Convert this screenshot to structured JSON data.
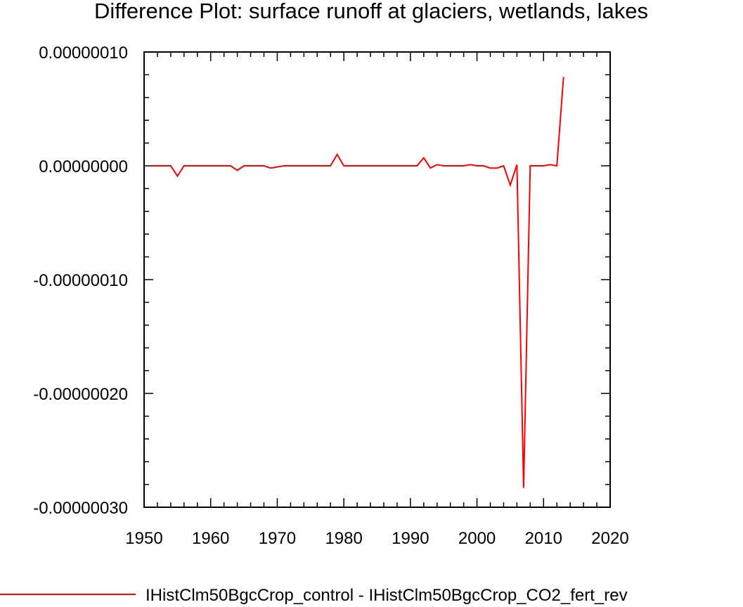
{
  "chart_data": {
    "type": "line",
    "title": "Difference Plot: surface runoff at glaciers, wetlands, lakes",
    "xlabel": "",
    "ylabel": "",
    "xlim": [
      1950,
      2020
    ],
    "ylim": [
      -3e-07,
      1e-07
    ],
    "x_ticks": [
      1950,
      1960,
      1970,
      1980,
      1990,
      2000,
      2010,
      2020
    ],
    "x_tick_labels": [
      "1950",
      "1960",
      "1970",
      "1980",
      "1990",
      "2000",
      "2010",
      "2020"
    ],
    "y_ticks": [
      1e-07,
      0,
      -1e-07,
      -2e-07,
      -3e-07
    ],
    "y_tick_labels": [
      "0.00000010",
      "0.00000000",
      "-0.00000010",
      "-0.00000020",
      "-0.00000030"
    ],
    "grid": false,
    "legend_position": "bottom",
    "series": [
      {
        "name": "IHistClm50BgcCrop_control - IHistClm50BgcCrop_CO2_fert_rev",
        "color": "#ff0000",
        "x": [
          1951,
          1952,
          1953,
          1954,
          1955,
          1956,
          1957,
          1958,
          1959,
          1960,
          1961,
          1962,
          1963,
          1964,
          1965,
          1966,
          1967,
          1968,
          1969,
          1970,
          1971,
          1972,
          1973,
          1974,
          1975,
          1976,
          1977,
          1978,
          1979,
          1980,
          1981,
          1982,
          1983,
          1984,
          1985,
          1986,
          1987,
          1988,
          1989,
          1990,
          1991,
          1992,
          1993,
          1994,
          1995,
          1996,
          1997,
          1998,
          1999,
          2000,
          2001,
          2002,
          2003,
          2004,
          2005,
          2006,
          2007,
          2008,
          2009,
          2010,
          2011,
          2012,
          2013
        ],
        "values": [
          0,
          0,
          0,
          0,
          -9e-09,
          0,
          0,
          0,
          0,
          0,
          0,
          0,
          0,
          -4e-09,
          0,
          0,
          0,
          0,
          -2e-09,
          -1e-09,
          0,
          0,
          0,
          0,
          0,
          0,
          0,
          0,
          1e-08,
          0,
          0,
          0,
          0,
          0,
          0,
          0,
          0,
          0,
          0,
          0,
          0,
          7e-09,
          -2e-09,
          1e-09,
          0,
          0,
          0,
          0,
          1e-09,
          0,
          0,
          -2e-09,
          -2e-09,
          0,
          -1.7e-08,
          1e-09,
          -2.83e-07,
          0,
          0,
          0,
          1e-09,
          0,
          7.8e-08
        ]
      }
    ]
  }
}
